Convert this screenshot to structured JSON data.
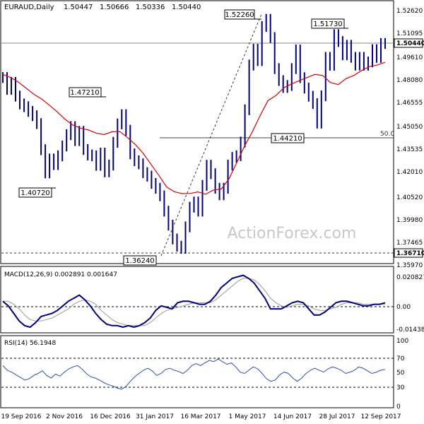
{
  "chart_data": [
    {
      "type": "line",
      "panel": "price",
      "title": "EURAUD,Daily",
      "ohlc_readout": [
        "1.50447",
        "1.50666",
        "1.50336",
        "1.50440"
      ],
      "last_price": "1.50440",
      "ylim": [
        1.3597,
        1.5262
      ],
      "y_ticks": [
        "1.52620",
        "1.51095",
        "1.49610",
        "1.48080",
        "1.46555",
        "1.45050",
        "1.43535",
        "1.42010",
        "1.40520",
        "1.39980",
        "1.37465",
        "1.35970"
      ],
      "x_ticks": [
        "19 Sep 2016",
        "2 Nov 2016",
        "16 Dec 2016",
        "31 Jan 2017",
        "16 Mar 2017",
        "1 May 2017",
        "14 Jun 2017",
        "28 Jul 2017",
        "12 Sep 2017"
      ],
      "watermark": "ActionForex.com",
      "series": [
        {
          "name": "",
          "color": "#000080",
          "close": [
            1.4822,
            1.4745,
            1.479,
            1.4701,
            1.465,
            1.4632,
            1.4601,
            1.4573,
            1.4522,
            1.4352,
            1.4201,
            1.4292,
            1.4255,
            1.4312,
            1.4376,
            1.445,
            1.4502,
            1.4411,
            1.4472,
            1.4353,
            1.4318,
            1.4312,
            1.425,
            1.433,
            1.4208,
            1.4252,
            1.44,
            1.452,
            1.458,
            1.4478,
            1.4325,
            1.428,
            1.426,
            1.4203,
            1.418,
            1.4133,
            1.4101,
            1.4052,
            1.3952,
            1.3861,
            1.3771,
            1.3724,
            1.371,
            1.385,
            1.3978,
            1.4012,
            1.3952,
            1.412,
            1.4251,
            1.4196,
            1.4101,
            1.4059,
            1.4101,
            1.4252,
            1.4302,
            1.4313,
            1.4402,
            1.4612,
            1.4903,
            1.5006,
            1.4932,
            1.5154,
            1.5201,
            1.5082,
            1.488,
            1.4802,
            1.4757,
            1.477,
            1.488,
            1.5001,
            1.4821,
            1.4753,
            1.47,
            1.4652,
            1.4525,
            1.4703,
            1.4953,
            1.4902,
            1.5101,
            1.5056,
            1.497,
            1.5032,
            1.4953,
            1.4903,
            1.4953,
            1.4902,
            1.4923,
            1.5003,
            1.4953,
            1.5043,
            1.5044
          ]
        },
        {
          "name": "",
          "color": "#dc0000",
          "values": [
            1.4842,
            1.4822,
            1.4792,
            1.4752,
            1.4712,
            1.4681,
            1.464,
            1.4597,
            1.4549,
            1.4512,
            1.4491,
            1.448,
            1.4459,
            1.445,
            1.4469,
            1.447,
            1.443,
            1.4385,
            1.4328,
            1.4256,
            1.4185,
            1.4109,
            1.4078,
            1.4066,
            1.4067,
            1.4077,
            1.4062,
            1.409,
            1.4096,
            1.4163,
            1.427,
            1.4378,
            1.447,
            1.4576,
            1.4673,
            1.4704,
            1.4754,
            1.478,
            1.4801,
            1.4822,
            1.4842,
            1.4835,
            1.4789,
            1.4776,
            1.4815,
            1.4835,
            1.4868,
            1.4893,
            1.4903,
            1.4921
          ]
        }
      ],
      "annotations": [
        {
          "label": "1.52260",
          "value": 1.5226
        },
        {
          "label": "1.51730",
          "value": 1.5173
        },
        {
          "label": "1.47210",
          "value": 1.4721
        },
        {
          "label": "1.40720",
          "value": 1.4072
        },
        {
          "label": "1.44210",
          "value": 1.4421
        },
        {
          "label": "1.36240",
          "value": 1.3624
        },
        {
          "label": "1.36710",
          "value": 1.3671
        }
      ],
      "fib_label": "50.0",
      "fib_value": 1.4443
    },
    {
      "type": "line",
      "panel": "macd",
      "title": "MACD(12,26,9) 0.002891 0.001647",
      "ylim": [
        -0.0144,
        0.0208
      ],
      "y_ticks": [
        "0.020827",
        "0.00",
        "-0.014386"
      ],
      "series": [
        {
          "name": "",
          "color": "#000080",
          "values": [
            0.004,
            0.001,
            -0.004,
            -0.009,
            -0.012,
            -0.013,
            -0.01,
            -0.006,
            -0.005,
            -0.004,
            -0.002,
            0.001,
            0.004,
            0.006,
            0.008,
            0.005,
            0.001,
            -0.004,
            -0.008,
            -0.011,
            -0.012,
            -0.012,
            -0.013,
            -0.012,
            -0.013,
            -0.012,
            -0.01,
            -0.007,
            -0.002,
            0.001,
            0.0,
            -0.001,
            0.003,
            0.004,
            0.004,
            0.003,
            0.002,
            0.002,
            0.004,
            0.008,
            0.013,
            0.016,
            0.019,
            0.02,
            0.021,
            0.019,
            0.016,
            0.011,
            0.006,
            -0.001,
            -0.001,
            -0.001,
            0.001,
            0.003,
            0.004,
            0.003,
            -0.001,
            -0.005,
            -0.005,
            -0.003,
            0.0,
            0.003,
            0.004,
            0.004,
            0.003,
            0.002,
            0.001,
            0.001,
            0.002,
            0.002,
            0.003
          ]
        },
        {
          "name": "",
          "color": "#999999",
          "values": [
            0.004,
            0.004,
            0.002,
            -0.001,
            -0.005,
            -0.008,
            -0.009,
            -0.009,
            -0.008,
            -0.007,
            -0.005,
            -0.003,
            -0.001,
            0.002,
            0.004,
            0.005,
            0.004,
            0.002,
            -0.002,
            -0.005,
            -0.008,
            -0.01,
            -0.011,
            -0.012,
            -0.012,
            -0.012,
            -0.012,
            -0.01,
            -0.007,
            -0.004,
            -0.002,
            -0.001,
            0.0,
            0.001,
            0.002,
            0.003,
            0.003,
            0.003,
            0.003,
            0.005,
            0.008,
            0.011,
            0.014,
            0.017,
            0.019,
            0.019,
            0.018,
            0.015,
            0.011,
            0.006,
            0.003,
            0.001,
            0.0,
            0.001,
            0.002,
            0.002,
            0.001,
            -0.001,
            -0.002,
            -0.002,
            -0.001,
            0.0,
            0.002,
            0.003,
            0.003,
            0.003,
            0.002,
            0.002,
            0.002,
            0.002,
            0.002
          ]
        }
      ]
    },
    {
      "type": "line",
      "panel": "rsi",
      "title": "RSI(14) 56.1948",
      "ylim": [
        0,
        100
      ],
      "y_ticks": [
        "100",
        "70",
        "50",
        "30",
        "0"
      ],
      "levels": [
        70,
        30
      ],
      "series": [
        {
          "name": "",
          "color": "#2a52be",
          "values": [
            62,
            55,
            52,
            48,
            44,
            40,
            42,
            47,
            50,
            54,
            47,
            43,
            49,
            46,
            52,
            57,
            60,
            62,
            57,
            50,
            45,
            43,
            40,
            36,
            33,
            31,
            28,
            26,
            30,
            38,
            45,
            50,
            55,
            58,
            54,
            47,
            50,
            56,
            58,
            55,
            53,
            50,
            55,
            62,
            65,
            62,
            66,
            70,
            68,
            72,
            68,
            64,
            66,
            60,
            52,
            50,
            55,
            60,
            57,
            50,
            42,
            38,
            40,
            48,
            52,
            50,
            43,
            38,
            43,
            50,
            55,
            58,
            55,
            52,
            57,
            60,
            58,
            55,
            50,
            52,
            55,
            60,
            58,
            54,
            50,
            52,
            55,
            56
          ]
        }
      ]
    }
  ]
}
